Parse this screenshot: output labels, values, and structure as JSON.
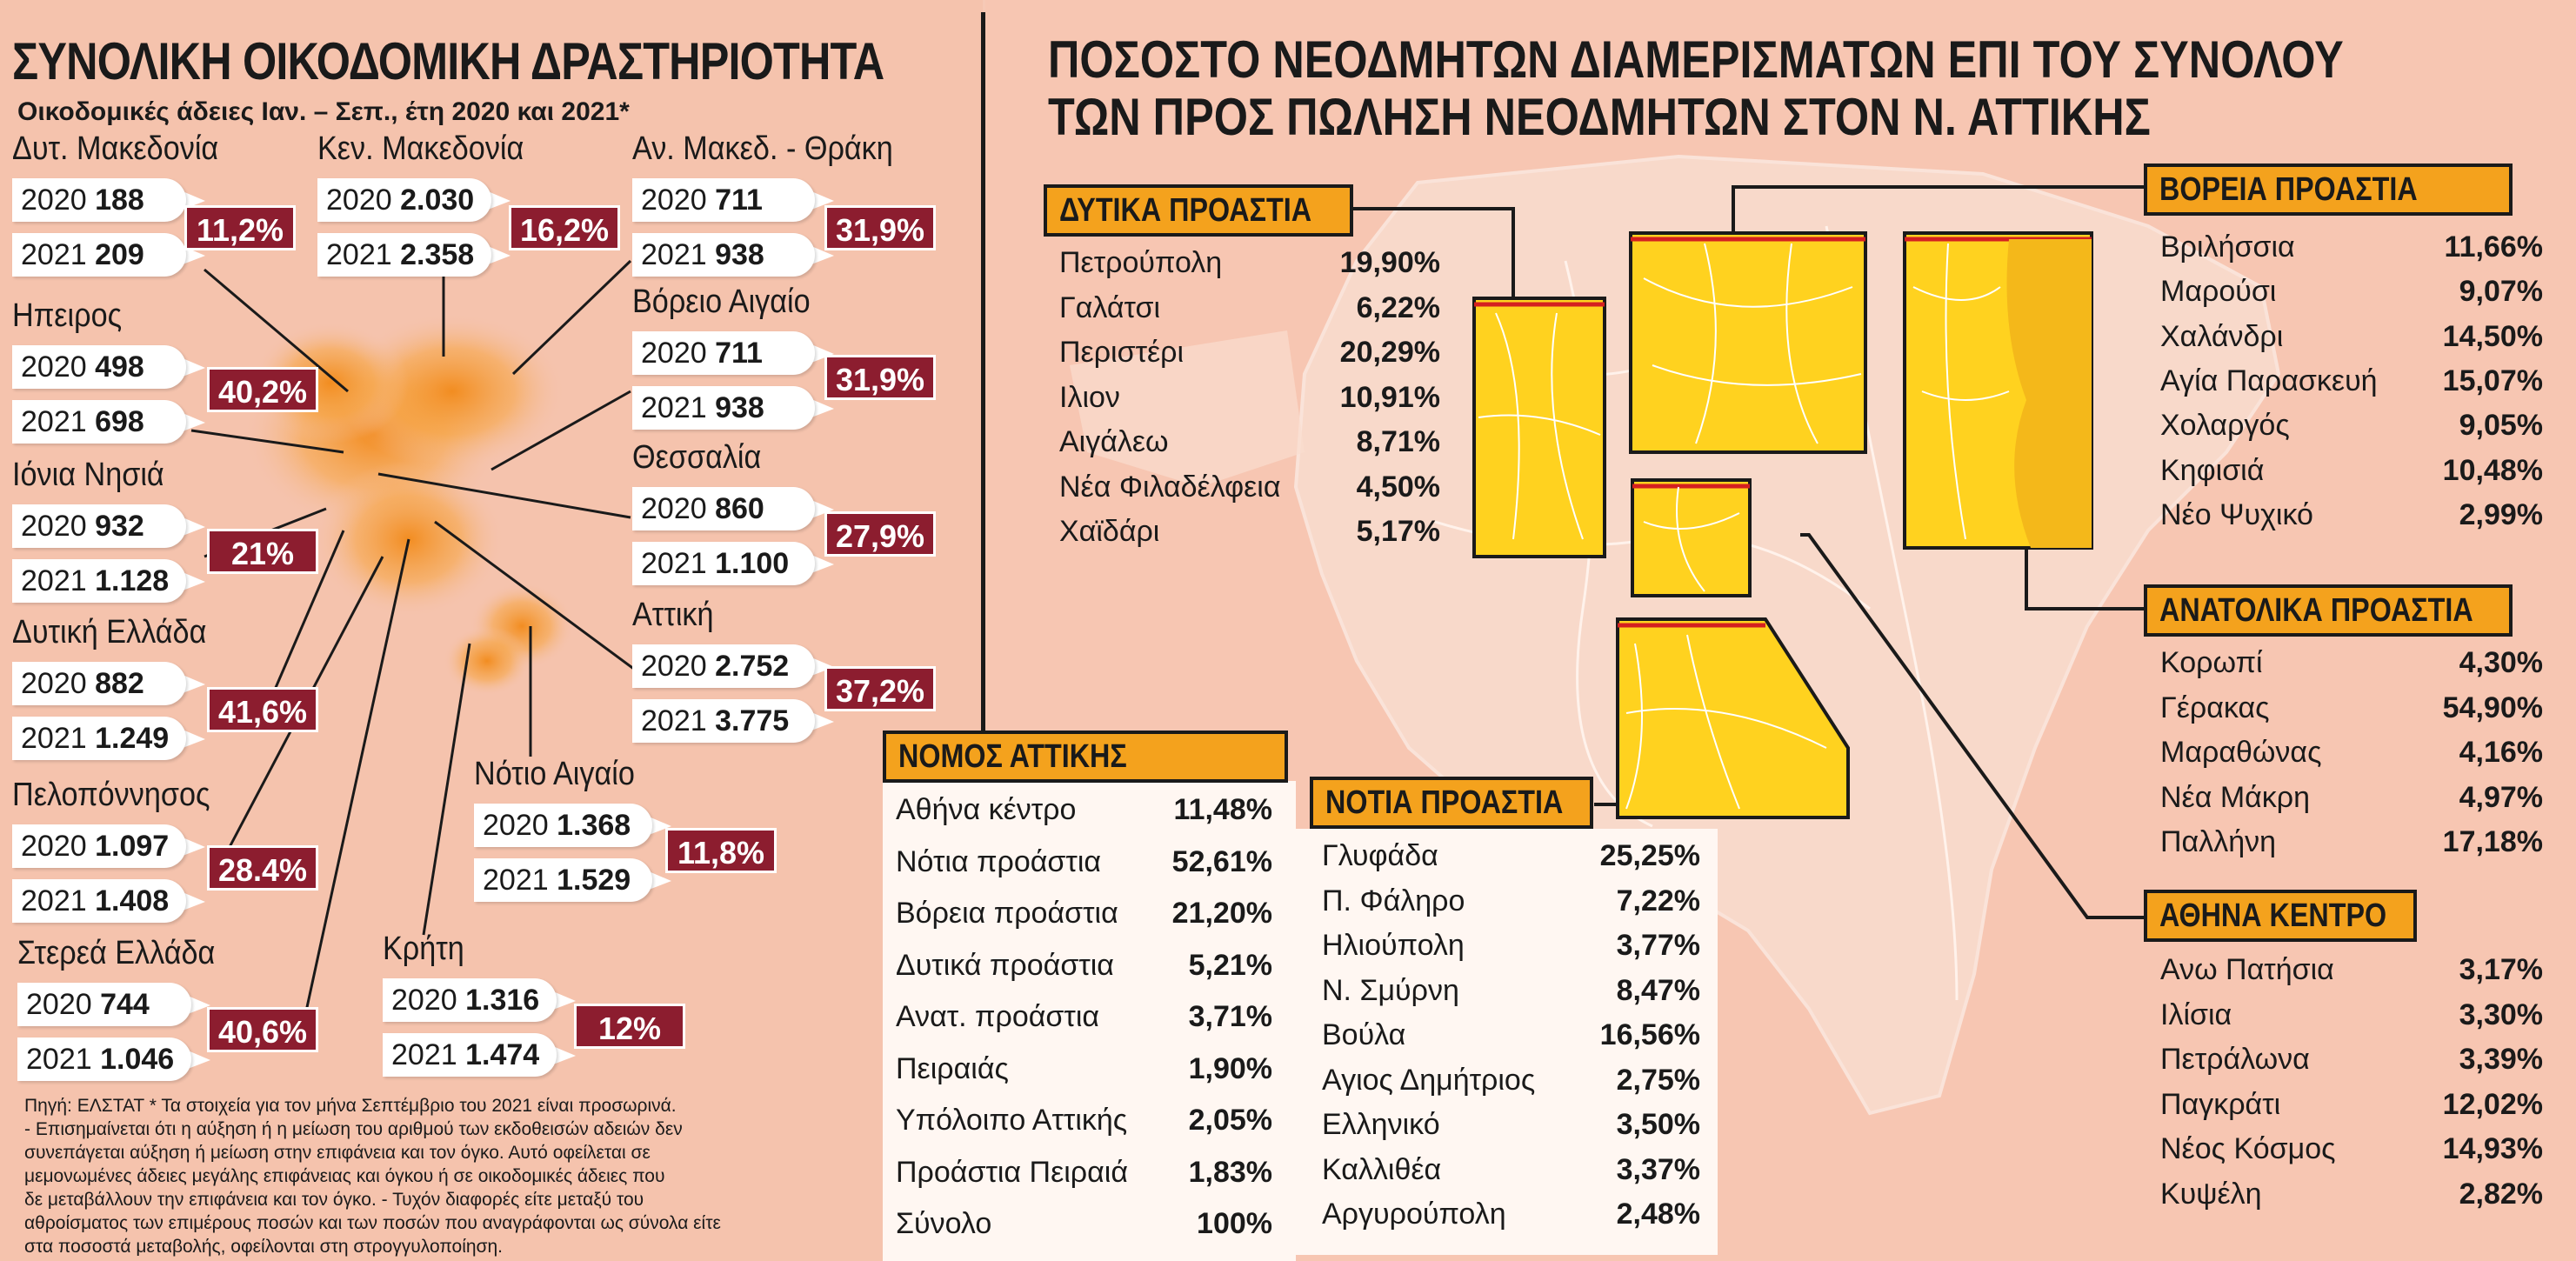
{
  "left_panel": {
    "title": "ΣΥΝΟΛΙΚΗ ΟΙΚΟΔΟΜΙΚΗ ΔΡΑΣΤΗΡΙΟΤΗΤΑ",
    "subtitle": "Οικοδομικές άδειες  Ιαν. – Σεπ., έτη 2020 και 2021*",
    "regions": [
      {
        "name": "Δυτ. Μακεδονία",
        "y2020_label": "2020",
        "v2020": "188",
        "y2021_label": "2021",
        "v2021": "209",
        "change": "11,2%"
      },
      {
        "name": "Κεν. Μακεδονία",
        "y2020_label": "2020",
        "v2020": "2.030",
        "y2021_label": "2021",
        "v2021": "2.358",
        "change": "16,2%"
      },
      {
        "name": "Αν. Μακεδ. - Θράκη",
        "y2020_label": "2020",
        "v2020": "711",
        "y2021_label": "2021",
        "v2021": "938",
        "change": "31,9%"
      },
      {
        "name": "Ηπειρος",
        "y2020_label": "2020",
        "v2020": "498",
        "y2021_label": "2021",
        "v2021": "698",
        "change": "40,2%"
      },
      {
        "name": "Βόρειο Αιγαίο",
        "y2020_label": "2020",
        "v2020": "711",
        "y2021_label": "2021",
        "v2021": "938",
        "change": "31,9%"
      },
      {
        "name": "Ιόνια Νησιά",
        "y2020_label": "2020",
        "v2020": "932",
        "y2021_label": "2021",
        "v2021": "1.128",
        "change": "21%"
      },
      {
        "name": "Θεσσαλία",
        "y2020_label": "2020",
        "v2020": "860",
        "y2021_label": "2021",
        "v2021": "1.100",
        "change": "27,9%"
      },
      {
        "name": "Δυτική Ελλάδα",
        "y2020_label": "2020",
        "v2020": "882",
        "y2021_label": "2021",
        "v2021": "1.249",
        "change": "41,6%"
      },
      {
        "name": "Αττική",
        "y2020_label": "2020",
        "v2020": "2.752",
        "y2021_label": "2021",
        "v2021": "3.775",
        "change": "37,2%"
      },
      {
        "name": "Πελοπόννησος",
        "y2020_label": "2020",
        "v2020": "1.097",
        "y2021_label": "2021",
        "v2021": "1.408",
        "change": "28.4%"
      },
      {
        "name": "Νότιο Αιγαίο",
        "y2020_label": "2020",
        "v2020": "1.368",
        "y2021_label": "2021",
        "v2021": "1.529",
        "change": "11,8%"
      },
      {
        "name": "Στερεά Ελλάδα",
        "y2020_label": "2020",
        "v2020": "744",
        "y2021_label": "2021",
        "v2021": "1.046",
        "change": "40,6%"
      },
      {
        "name": "Κρήτη",
        "y2020_label": "2020",
        "v2020": "1.316",
        "y2021_label": "2021",
        "v2021": "1.474",
        "change": "12%"
      }
    ],
    "footnote": [
      "Πηγή: ΕΛΣΤΑΤ * Τα στοιχεία για τον μήνα Σεπτέμβριο του 2021 είναι προσωρινά.",
      "- Επισημαίνεται ότι η αύξηση ή η μείωση του αριθμού των εκδοθεισών αδειών δεν",
      "συνεπάγεται αύξηση ή μείωση στην επιφάνεια και τον όγκο. Αυτό οφείλεται σε",
      "μεμονωμένες άδειες μεγάλης επιφάνειας και όγκου ή σε οικοδομικές άδειες που",
      "δε μεταβάλλουν την επιφάνεια και τον όγκο. - Τυχόν διαφορές είτε μεταξύ του",
      "αθροίσματος των επιμέρους ποσών και των ποσών που αναγράφονται ως σύνολα είτε",
      "στα ποσοστά μεταβολής, οφείλονται στη στρογγυλοποίηση."
    ]
  },
  "right_panel": {
    "title_line1": "ΠΟΣΟΣΤΟ ΝΕΟΔΜΗΤΩΝ ΔΙΑΜΕΡΙΣΜΑΤΩΝ ΕΠΙ ΤΟΥ ΣΥΝΟΛΟΥ",
    "title_line2": "ΤΩΝ ΠΡΟΣ ΠΩΛΗΣΗ ΝΕΟΔΜΗΤΩΝ ΣΤΟΝ Ν. ΑΤΤΙΚΗΣ"
  },
  "colors": {
    "accent_red": "#8c1d2f",
    "header_orange": "#f4a21d",
    "map_yellow": "#ffd21f",
    "background": "#f6c9b6"
  },
  "chart_data": [
    {
      "type": "table",
      "title": "ΔΥΤΙΚΑ ΠΡΟΑΣΤΙΑ",
      "rows": [
        {
          "label": "Πετρούπολη",
          "value": "19,90%"
        },
        {
          "label": "Γαλάτσι",
          "value": "6,22%"
        },
        {
          "label": "Περιστέρι",
          "value": "20,29%"
        },
        {
          "label": "Ιλιον",
          "value": "10,91%"
        },
        {
          "label": "Αιγάλεω",
          "value": "8,71%"
        },
        {
          "label": "Νέα Φιλαδέλφεια",
          "value": "4,50%"
        },
        {
          "label": "Χαϊδάρι",
          "value": "5,17%"
        }
      ]
    },
    {
      "type": "table",
      "title": "ΒΟΡΕΙΑ ΠΡΟΑΣΤΙΑ",
      "rows": [
        {
          "label": "Βριλήσσια",
          "value": "11,66%"
        },
        {
          "label": "Μαρούσι",
          "value": "9,07%"
        },
        {
          "label": "Χαλάνδρι",
          "value": "14,50%"
        },
        {
          "label": "Αγία Παρασκευή",
          "value": "15,07%"
        },
        {
          "label": "Χολαργός",
          "value": "9,05%"
        },
        {
          "label": "Κηφισιά",
          "value": "10,48%"
        },
        {
          "label": "Νέο Ψυχικό",
          "value": "2,99%"
        }
      ]
    },
    {
      "type": "table",
      "title": "ΑΝΑΤΟΛΙΚΑ ΠΡΟΑΣΤΙΑ",
      "rows": [
        {
          "label": "Κορωπί",
          "value": "4,30%"
        },
        {
          "label": "Γέρακας",
          "value": "54,90%"
        },
        {
          "label": "Μαραθώνας",
          "value": "4,16%"
        },
        {
          "label": "Νέα Μάκρη",
          "value": "4,97%"
        },
        {
          "label": "Παλλήνη",
          "value": "17,18%"
        }
      ]
    },
    {
      "type": "table",
      "title": "ΑΘΗΝΑ ΚΕΝΤΡΟ",
      "rows": [
        {
          "label": "Ανω Πατήσια",
          "value": "3,17%"
        },
        {
          "label": "Ιλίσια",
          "value": "3,30%"
        },
        {
          "label": "Πετράλωνα",
          "value": "3,39%"
        },
        {
          "label": "Παγκράτι",
          "value": "12,02%"
        },
        {
          "label": "Νέος Κόσμος",
          "value": "14,93%"
        },
        {
          "label": "Κυψέλη",
          "value": "2,82%"
        }
      ]
    },
    {
      "type": "table",
      "title": "ΝΟΤΙΑ ΠΡΟΑΣΤΙΑ",
      "rows": [
        {
          "label": "Γλυφάδα",
          "value": "25,25%"
        },
        {
          "label": "Π. Φάληρο",
          "value": "7,22%"
        },
        {
          "label": "Ηλιούπολη",
          "value": "3,77%"
        },
        {
          "label": "Ν. Σμύρνη",
          "value": "8,47%"
        },
        {
          "label": "Βούλα",
          "value": "16,56%"
        },
        {
          "label": "Αγιος Δημήτριος",
          "value": "2,75%"
        },
        {
          "label": "Ελληνικό",
          "value": "3,50%"
        },
        {
          "label": "Καλλιθέα",
          "value": "3,37%"
        },
        {
          "label": "Αργυρούπολη",
          "value": "2,48%"
        }
      ]
    },
    {
      "type": "table",
      "title": "ΝΟΜΟΣ ΑΤΤΙΚΗΣ",
      "rows": [
        {
          "label": "Αθήνα κέντρο",
          "value": "11,48%"
        },
        {
          "label": "Νότια προάστια",
          "value": "52,61%"
        },
        {
          "label": "Βόρεια προάστια",
          "value": "21,20%"
        },
        {
          "label": "Δυτικά προάστια",
          "value": "5,21%"
        },
        {
          "label": "Ανατ. προάστια",
          "value": "3,71%"
        },
        {
          "label": "Πειραιάς",
          "value": "1,90%"
        },
        {
          "label": "Υπόλοιπο Αττικής",
          "value": "2,05%"
        },
        {
          "label": "Προάστια Πειραιά",
          "value": "1,83%"
        },
        {
          "label": "Σύνολο",
          "value": "100%"
        }
      ]
    }
  ]
}
